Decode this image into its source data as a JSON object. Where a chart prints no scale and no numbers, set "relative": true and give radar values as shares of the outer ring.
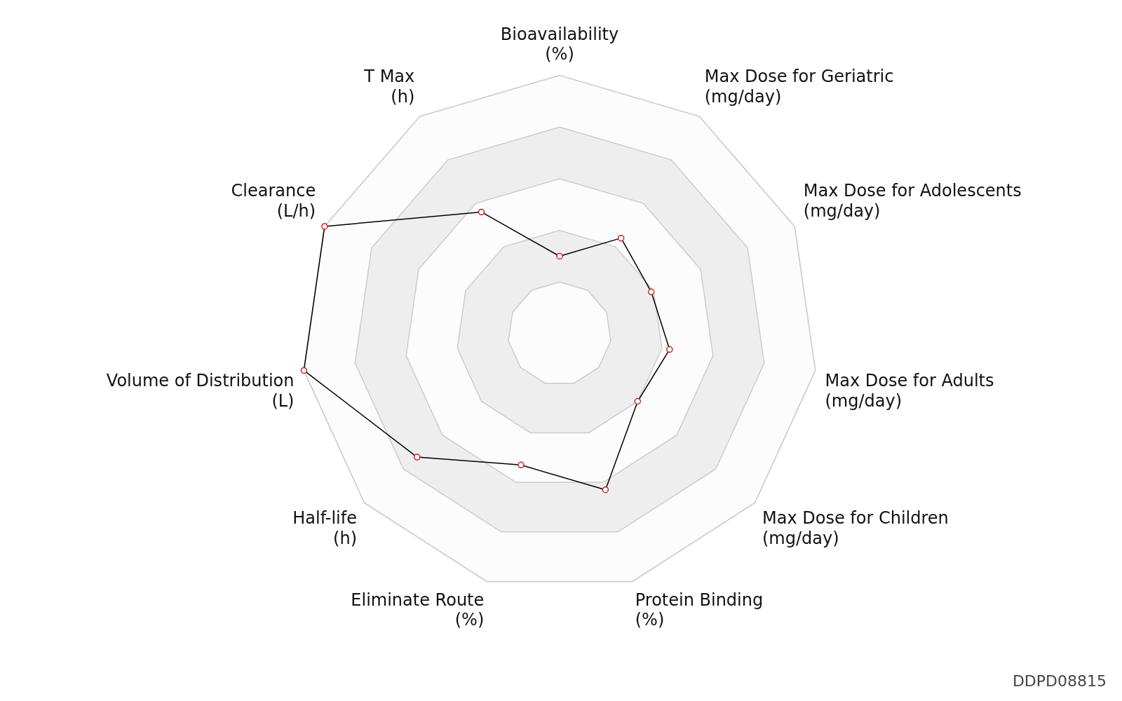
{
  "chart_data": {
    "type": "radar",
    "relative": true,
    "categories": [
      "Bioavailability\n(%)",
      "Max Dose for Geriatric\n(mg/day)",
      "Max Dose for Adolescents\n(mg/day)",
      "Max Dose for Adults\n(mg/day)",
      "Max Dose for Children\n(mg/day)",
      "Protein Binding\n(%)",
      "Eliminate Route\n(%)",
      "Half-life\n(h)",
      "Volume of Distribution\n(L)",
      "Clearance\n(L/h)",
      "T Max\n(h)"
    ],
    "series": [
      {
        "color": "#000000",
        "values": [
          0.3,
          0.44,
          0.39,
          0.43,
          0.4,
          0.63,
          0.53,
          0.73,
          1.0,
          1.0,
          0.56
        ]
      }
    ],
    "marker": "circle",
    "grid": true,
    "legend": false,
    "annotations": [
      "DDPD08815"
    ]
  }
}
